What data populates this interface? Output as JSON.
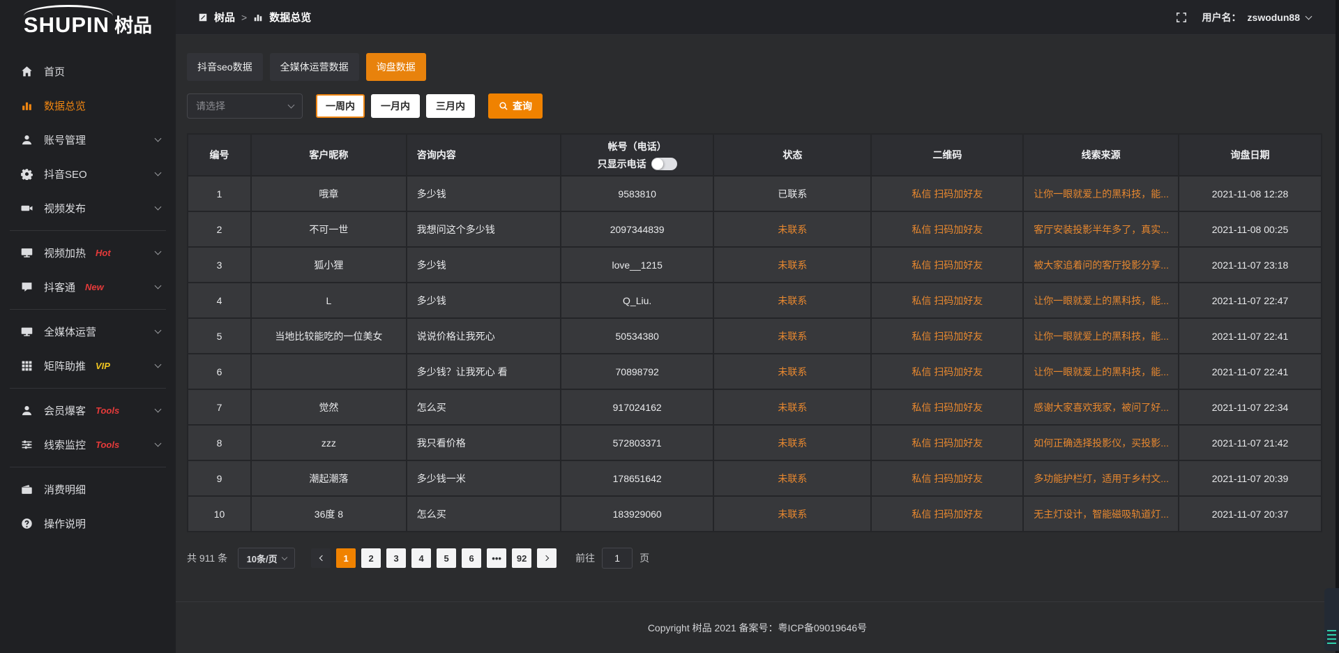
{
  "colors": {
    "accent": "#f08200",
    "tab_active": "#e8820c",
    "table_link_orange": "#e8882f",
    "badge_red": "#e53a3a",
    "badge_yellow": "#f0c420",
    "widget_teal": "#2fd3ae"
  },
  "logo": {
    "brand_en": "SHUPIN",
    "brand_cn": "树品"
  },
  "header": {
    "breadcrumb": [
      {
        "label": "树品"
      },
      {
        "label": "数据总览"
      }
    ],
    "separator": ">",
    "username_label": "用户名：",
    "username": "zswodun88"
  },
  "sidebar": {
    "items": [
      {
        "label": "首页"
      },
      {
        "label": "数据总览"
      },
      {
        "label": "账号管理"
      },
      {
        "label": "抖音SEO"
      },
      {
        "label": "视频发布"
      },
      {
        "label": "视频加热",
        "badge": "Hot"
      },
      {
        "label": "抖客通",
        "badge": "New"
      },
      {
        "label": "全媒体运营"
      },
      {
        "label": "矩阵助推",
        "badge": "VIP"
      },
      {
        "label": "会员爆客",
        "badge": "Tools"
      },
      {
        "label": "线索监控",
        "badge": "Tools"
      },
      {
        "label": "消费明细"
      },
      {
        "label": "操作说明"
      }
    ]
  },
  "tabs": [
    {
      "label": "抖音seo数据",
      "active": false
    },
    {
      "label": "全媒体运营数据",
      "active": false
    },
    {
      "label": "询盘数据",
      "active": true
    }
  ],
  "filters": {
    "select_placeholder": "请选择",
    "range_buttons": [
      {
        "label": "一周内",
        "active": true
      },
      {
        "label": "一月内",
        "active": false
      },
      {
        "label": "三月内",
        "active": false
      }
    ],
    "search_label": "查询"
  },
  "table": {
    "headers": [
      "编号",
      "客户昵称",
      "咨询内容",
      "帐号（电话）",
      "状态",
      "二维码",
      "线索来源",
      "询盘日期"
    ],
    "phone_toggle_label": "只显示电话",
    "rows": [
      {
        "num": "1",
        "nickname": "哦章",
        "content": "多少钱",
        "account": "9583810",
        "status": "已联系",
        "qrcode": "私信 扫码加好友",
        "source": "让你一眼就爱上的黑科技，能...",
        "date": "2021-11-08 12:28"
      },
      {
        "num": "2",
        "nickname": "不可一世",
        "content": "我想问这个多少钱",
        "account": "2097344839",
        "status": "未联系",
        "qrcode": "私信 扫码加好友",
        "source": "客厅安装投影半年多了，真实...",
        "date": "2021-11-08 00:25"
      },
      {
        "num": "3",
        "nickname": "狐小狸",
        "content": "多少钱",
        "account": "love__1215",
        "status": "未联系",
        "qrcode": "私信 扫码加好友",
        "source": "被大家追着问的客厅投影分享...",
        "date": "2021-11-07 23:18"
      },
      {
        "num": "4",
        "nickname": "L",
        "content": "多少钱",
        "account": "Q_Liu.",
        "status": "未联系",
        "qrcode": "私信 扫码加好友",
        "source": "让你一眼就爱上的黑科技，能...",
        "date": "2021-11-07 22:47"
      },
      {
        "num": "5",
        "nickname": "当地比较能吃的一位美女",
        "content": "说说价格让我死心",
        "account": "50534380",
        "status": "未联系",
        "qrcode": "私信 扫码加好友",
        "source": "让你一眼就爱上的黑科技，能...",
        "date": "2021-11-07 22:41"
      },
      {
        "num": "6",
        "nickname": "",
        "content": "多少钱？让我死心 看",
        "account": "70898792",
        "status": "未联系",
        "qrcode": "私信 扫码加好友",
        "source": "让你一眼就爱上的黑科技，能...",
        "date": "2021-11-07 22:41"
      },
      {
        "num": "7",
        "nickname": "觉然",
        "content": "怎么买",
        "account": "917024162",
        "status": "未联系",
        "qrcode": "私信 扫码加好友",
        "source": "感谢大家喜欢我家，被问了好...",
        "date": "2021-11-07 22:34"
      },
      {
        "num": "8",
        "nickname": "zzz",
        "content": "我只看价格",
        "account": "572803371",
        "status": "未联系",
        "qrcode": "私信 扫码加好友",
        "source": "如何正确选择投影仪，买投影...",
        "date": "2021-11-07 21:42"
      },
      {
        "num": "9",
        "nickname": "潮起潮落",
        "content": "多少钱一米",
        "account": "178651642",
        "status": "未联系",
        "qrcode": "私信 扫码加好友",
        "source": "多功能护栏灯，适用于乡村文...",
        "date": "2021-11-07 20:39"
      },
      {
        "num": "10",
        "nickname": "36度 8",
        "content": "怎么买",
        "account": "183929060",
        "status": "未联系",
        "qrcode": "私信 扫码加好友",
        "source": "无主灯设计，智能磁吸轨道灯...",
        "date": "2021-11-07 20:37"
      }
    ]
  },
  "pagination": {
    "total": "共 911 条",
    "page_size": "10条/页",
    "pages": [
      "1",
      "2",
      "3",
      "4",
      "5",
      "6",
      "•••",
      "92"
    ],
    "active_page": "1",
    "goto_label": "前往",
    "goto_value": "1",
    "goto_suffix": "页"
  },
  "footer": {
    "copyright": "Copyright 树品 2021 备案号：粤ICP备09019646号"
  }
}
